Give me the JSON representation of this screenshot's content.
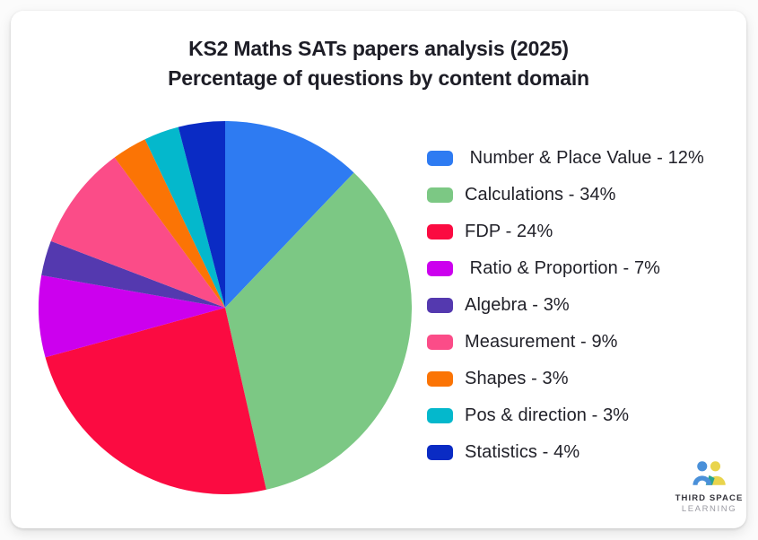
{
  "title": {
    "line1": "KS2 Maths SATs papers analysis (2025)",
    "line2": "Percentage of questions by content domain"
  },
  "chart_data": {
    "type": "pie",
    "title": "KS2 Maths SATs papers analysis (2025)",
    "subtitle": "Percentage of questions by content domain",
    "labels": [
      "Number & Place Value",
      "Calculations",
      "FDP",
      "Ratio & Proportion",
      "Algebra",
      "Measurement",
      "Shapes",
      "Pos & direction",
      "Statistics"
    ],
    "values": [
      12,
      34,
      24,
      7,
      3,
      9,
      3,
      3,
      4
    ],
    "unit": "%",
    "colors": [
      "#2E7BF2",
      "#7CC884",
      "#FB0B41",
      "#CC00EE",
      "#5439AF",
      "#FB4C88",
      "#FB7405",
      "#04B8CC",
      "#0A2BC4"
    ],
    "legend_items": [
      " Number & Place Value - 12%",
      "Calculations - 34%",
      "FDP - 24%",
      " Ratio & Proportion - 7%",
      "Algebra - 3%",
      "Measurement - 9%",
      "Shapes - 3%",
      "Pos & direction - 3%",
      "Statistics - 4%"
    ],
    "legend_position": "right",
    "start_angle_deg": 0,
    "direction": "clockwise"
  },
  "logo": {
    "brand_line1": "THIRD SPACE",
    "brand_line2": "LEARNING",
    "icon": "two-people-icon",
    "colors": {
      "blue": "#4A90D9",
      "yellow": "#E9D44C",
      "teal": "#2AA38E"
    }
  }
}
